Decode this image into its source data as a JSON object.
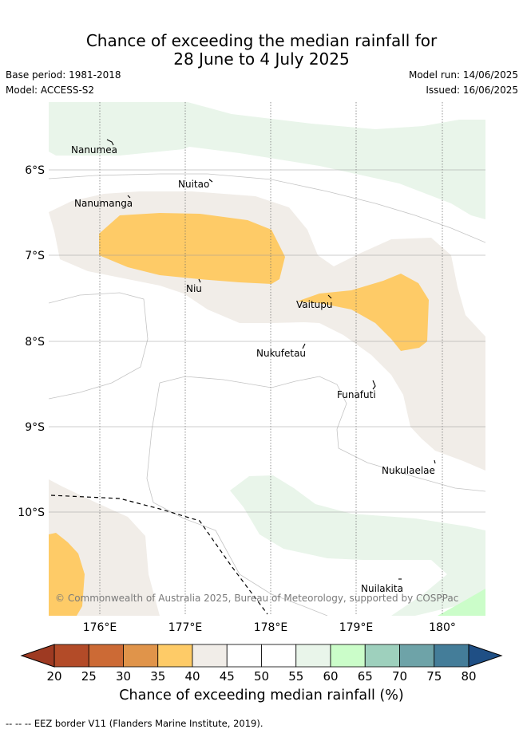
{
  "title": {
    "line1": "Chance of exceeding the median rainfall for",
    "line2": "28 June to 4 July 2025"
  },
  "meta": {
    "base_period": "Base period: 1981-2018",
    "model": "Model: ACCESS-S2",
    "model_run": "Model run: 14/06/2025",
    "issued": "Issued: 16/06/2025"
  },
  "map": {
    "lon_labels": [
      "176°E",
      "177°E",
      "178°E",
      "179°E",
      "180°"
    ],
    "lat_labels": [
      "6°S",
      "7°S",
      "8°S",
      "9°S",
      "10°S"
    ],
    "places": [
      "Nanumea",
      "Nuitao",
      "Nanumanga",
      "Niu",
      "Vaitupu",
      "Nukufetau",
      "Funafuti",
      "Nukulaelae",
      "Nuilakita"
    ],
    "copyright": "© Commonwealth of Australia 2025, Bureau of Meteorology, supported by COSPPac"
  },
  "colorbar": {
    "ticks": [
      "20",
      "25",
      "30",
      "35",
      "40",
      "45",
      "50",
      "55",
      "60",
      "65",
      "70",
      "75",
      "80"
    ],
    "colors": [
      "#b34b28",
      "#cc6a35",
      "#e0944a",
      "#fecb67",
      "#f1ede8",
      "#ffffff",
      "#ffffff",
      "#e9f5ea",
      "#cbfdc9",
      "#9ed0bd",
      "#6ea3a8",
      "#447d99"
    ],
    "low_color": "#9e3a22",
    "high_color": "#1f4f85",
    "label": "Chance of exceeding median rainfall (%)"
  },
  "footer": "-- -- -- EEZ border V11 (Flanders Marine Institute, 2019)."
}
